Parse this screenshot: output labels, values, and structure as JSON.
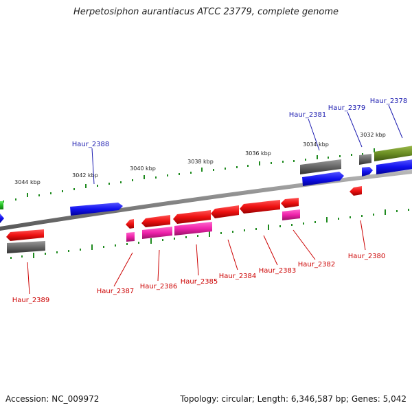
{
  "title": "Herpetosiphon aurantiacus ATCC 23779, complete genome",
  "footer": {
    "accession": "Accession: NC_009972",
    "stats": "Topology: circular; Length: 6,346,587 bp; Genes: 5,042"
  },
  "colors": {
    "backbone": "#888888",
    "tick": "#1e8a1e",
    "upper_label": "#1b1bb0",
    "lower_label": "#cc0000",
    "gene_red": "#ee1111",
    "gene_pink": "#ee22aa",
    "gene_blue": "#1111ee",
    "gene_gray": "#666666",
    "gene_olive": "#6b8e23",
    "gene_green": "#22bb22"
  },
  "kbp_labels": [
    "3044 kbp",
    "3042 kbp",
    "3040 kbp",
    "3038 kbp",
    "3036 kbp",
    "3034 kbp",
    "3032 kbp"
  ],
  "upper_genes": [
    "Haur_2388",
    "Haur_2381",
    "Haur_2379",
    "Haur_2378"
  ],
  "lower_genes": [
    "Haur_2389",
    "Haur_2387",
    "Haur_2386",
    "Haur_2385",
    "Haur_2384",
    "Haur_2383",
    "Haur_2382",
    "Haur_2380"
  ]
}
